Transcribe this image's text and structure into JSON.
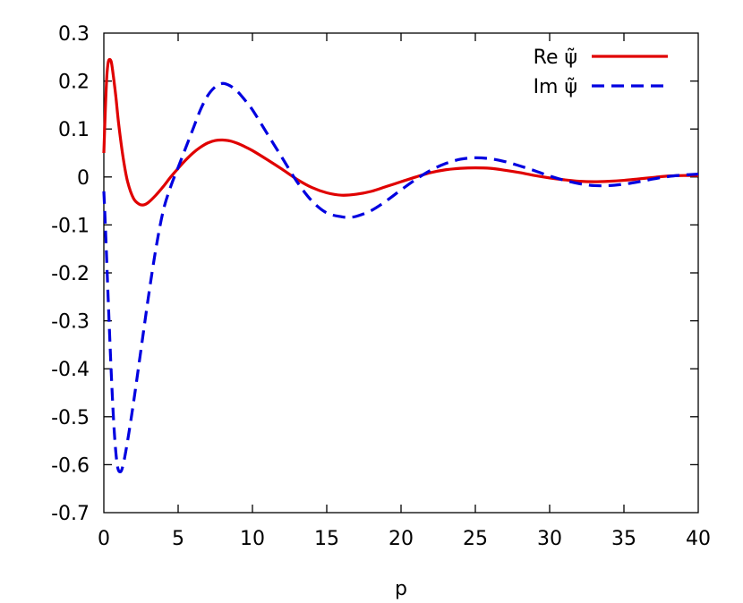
{
  "chart_data": {
    "type": "line",
    "xlabel": "p",
    "ylabel": "",
    "xlim": [
      0,
      40
    ],
    "ylim": [
      -0.7,
      0.3
    ],
    "grid": false,
    "legend_position": "top-right",
    "x_ticks": [
      "0",
      "5",
      "10",
      "15",
      "20",
      "25",
      "30",
      "35",
      "40"
    ],
    "y_ticks": [
      "0.3",
      "0.2",
      "0.1",
      "0",
      "-0.1",
      "-0.2",
      "-0.3",
      "-0.4",
      "-0.5",
      "-0.6",
      "-0.7"
    ],
    "series": [
      {
        "name": "Re ψ̃",
        "color": "#e00000",
        "dash": "solid",
        "x": [
          0,
          0.1,
          0.2,
          0.3,
          0.4,
          0.5,
          0.6,
          0.8,
          1,
          1.3,
          1.6,
          2,
          2.4,
          2.7,
          3,
          3.5,
          4,
          4.5,
          5,
          5.5,
          6,
          6.5,
          7,
          7.5,
          8,
          8.5,
          9,
          9.5,
          10,
          11,
          12,
          13,
          14,
          15,
          16,
          17,
          18,
          19,
          20,
          21,
          22,
          23,
          24,
          25,
          26,
          27,
          28,
          29,
          30,
          31,
          32,
          33,
          34,
          35,
          36,
          37,
          38,
          39,
          40
        ],
        "y": [
          0.05,
          0.14,
          0.21,
          0.24,
          0.245,
          0.24,
          0.22,
          0.17,
          0.11,
          0.04,
          -0.01,
          -0.045,
          -0.057,
          -0.058,
          -0.053,
          -0.038,
          -0.02,
          0.0,
          0.018,
          0.035,
          0.05,
          0.062,
          0.071,
          0.076,
          0.077,
          0.075,
          0.07,
          0.063,
          0.055,
          0.036,
          0.016,
          -0.005,
          -0.022,
          -0.033,
          -0.038,
          -0.036,
          -0.03,
          -0.02,
          -0.01,
          0.0,
          0.009,
          0.015,
          0.018,
          0.019,
          0.018,
          0.014,
          0.009,
          0.003,
          -0.002,
          -0.006,
          -0.009,
          -0.01,
          -0.009,
          -0.007,
          -0.004,
          -0.001,
          0.002,
          0.003,
          0.003
        ]
      },
      {
        "name": "Im ψ̃",
        "color": "#0000e0",
        "dash": "dashed",
        "x": [
          0,
          0.1,
          0.2,
          0.3,
          0.5,
          0.7,
          0.9,
          1.1,
          1.3,
          1.6,
          2,
          2.5,
          3,
          3.5,
          4,
          4.5,
          5,
          5.5,
          6,
          6.5,
          7,
          7.5,
          8,
          8.5,
          9,
          9.5,
          10,
          11,
          12,
          13,
          14,
          15,
          16,
          16.5,
          17,
          18,
          19,
          20,
          21,
          22,
          23,
          24,
          25,
          26,
          27,
          28,
          29,
          30,
          31,
          32,
          33,
          34,
          35,
          36,
          37,
          38,
          39,
          40
        ],
        "y": [
          -0.03,
          -0.1,
          -0.18,
          -0.26,
          -0.41,
          -0.53,
          -0.6,
          -0.615,
          -0.6,
          -0.55,
          -0.47,
          -0.36,
          -0.25,
          -0.15,
          -0.07,
          -0.02,
          0.02,
          0.06,
          0.1,
          0.14,
          0.17,
          0.188,
          0.195,
          0.19,
          0.178,
          0.16,
          0.14,
          0.09,
          0.04,
          -0.01,
          -0.05,
          -0.075,
          -0.083,
          -0.084,
          -0.082,
          -0.07,
          -0.05,
          -0.027,
          -0.005,
          0.014,
          0.028,
          0.037,
          0.04,
          0.038,
          0.032,
          0.023,
          0.013,
          0.002,
          -0.007,
          -0.014,
          -0.018,
          -0.018,
          -0.015,
          -0.01,
          -0.004,
          0.001,
          0.004,
          0.006
        ]
      }
    ]
  }
}
